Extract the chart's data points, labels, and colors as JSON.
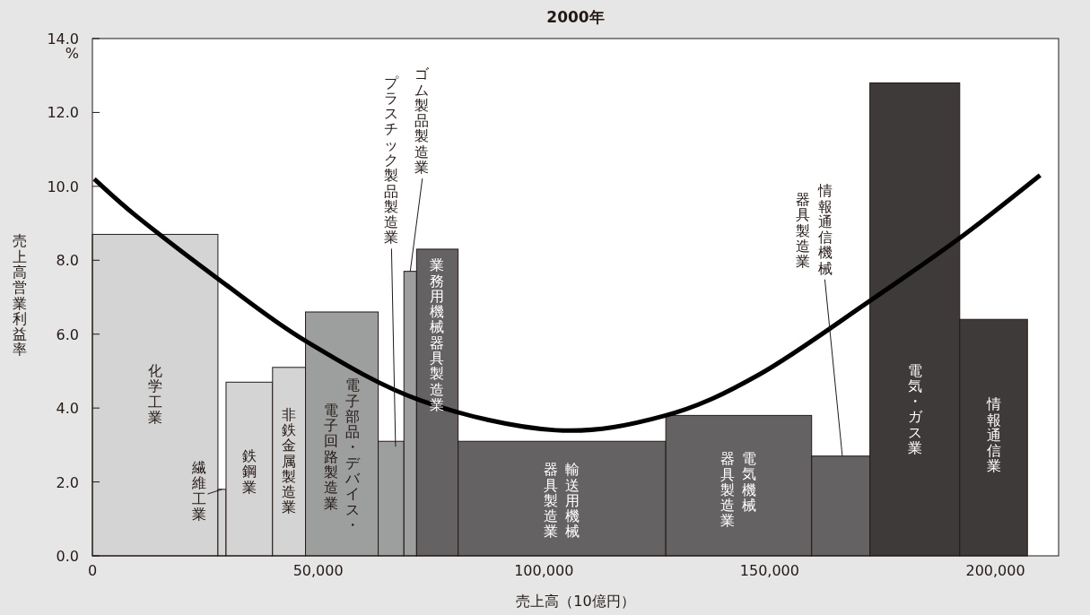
{
  "chart_data": {
    "type": "histogram",
    "title": "2000年",
    "xlabel": "売上高（10億円）",
    "ylabel": "売上高営業利益率",
    "bins": [
      0,
      27800,
      29600,
      39900,
      47200,
      63300,
      69000,
      71800,
      81000,
      127000,
      159300,
      172200,
      192100,
      207100
    ],
    "values": [
      8.7,
      1.8,
      4.7,
      5.1,
      6.6,
      3.1,
      7.7,
      8.3,
      3.1,
      3.8,
      2.7,
      12.8,
      6.4
    ],
    "colors": [
      "#d4d4d4",
      "#d4d4d4",
      "#d4d4d4",
      "#d4d4d4",
      "#9d9e9e",
      "#9d9e9e",
      "#9d9e9e",
      "#646263",
      "#646263",
      "#646263",
      "#646263",
      "#3e3a39",
      "#3e3a39"
    ],
    "series": [
      {
        "type": "line",
        "color": "#000000",
        "x": [
          400,
          9700,
          27800,
          47400,
          72800,
          102600,
          127000,
          147600,
          172200,
          192100,
          209900
        ],
        "values": [
          10.2,
          9.2,
          7.5,
          5.8,
          4.2,
          3.4,
          3.8,
          4.9,
          6.9,
          8.6,
          10.3
        ]
      }
    ],
    "xlim": [
      0,
      214000
    ],
    "xticks": [
      0,
      {
        "value": 50000,
        "label": "50,000"
      },
      {
        "value": 100000,
        "label": "100,000"
      },
      {
        "value": 150000,
        "label": "150,000"
      },
      {
        "value": 200000,
        "label": "200,000"
      }
    ],
    "ylim": [
      0,
      14
    ],
    "yticks": [
      {
        "value": 0,
        "label": "0.0"
      },
      {
        "value": 2,
        "label": "2.0"
      },
      {
        "value": 4,
        "label": "4.0"
      },
      {
        "value": 6,
        "label": "6.0"
      },
      {
        "value": 8,
        "label": "8.0"
      },
      {
        "value": 10,
        "label": "10.0"
      },
      {
        "value": 12,
        "label": "12.0"
      },
      {
        "value": 14,
        "label": "14.0"
      }
    ],
    "grid": false,
    "annotations": [
      "化学工業",
      {
        "text": "繊維工業",
        "x": 28700,
        "y": 1.8
      },
      "鉄鋼業",
      "非鉄金属製造業",
      "電子部品・デバイス・",
      "電子回路製造業",
      "プラスチック製品製造業",
      {
        "text": "ゴム製品製造業",
        "x": 70400,
        "y": 7.7
      },
      "業務用機械器具製造業",
      "輸送用機械",
      "器具製造業",
      "電気機械",
      "器具製造業",
      {
        "text": "情報通信機械",
        "x": 166100,
        "y": 2.7
      },
      "器具製造業",
      "電気・ガス業",
      "情報通信業",
      "%"
    ]
  }
}
